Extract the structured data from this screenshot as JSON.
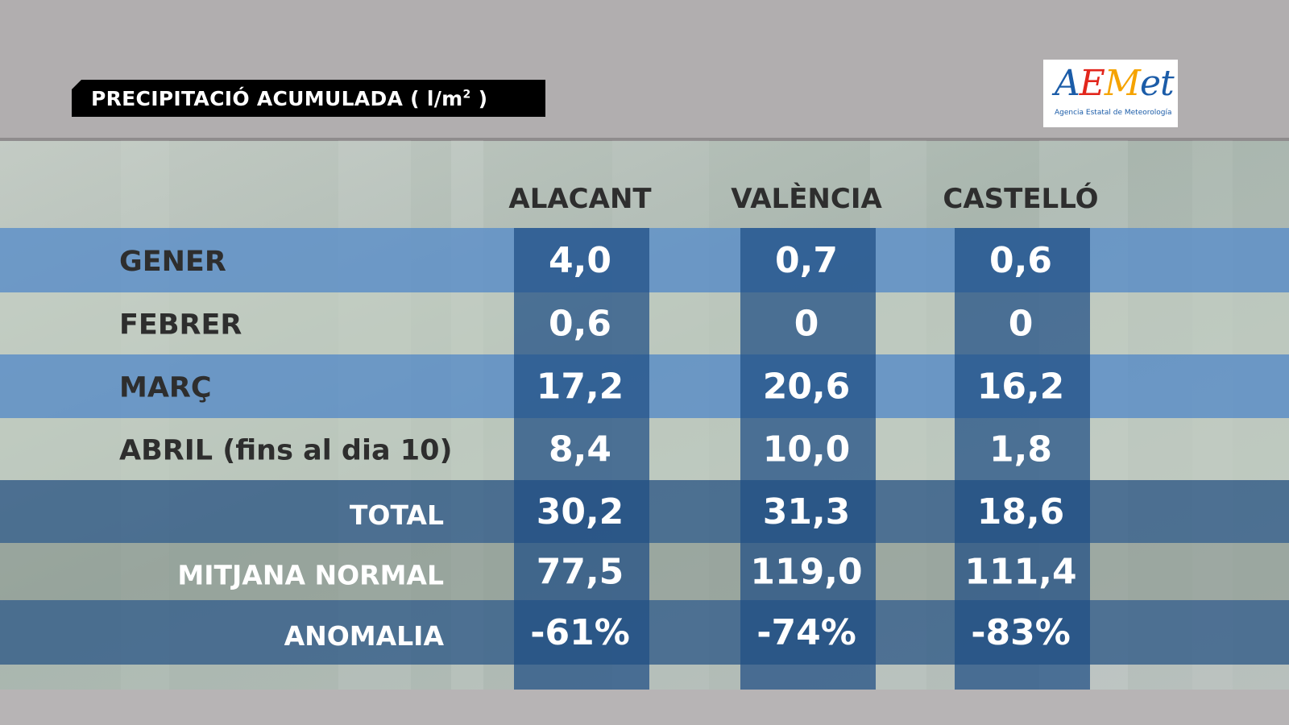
{
  "header": {
    "title_text": "PRECIPITACIÓ ACUMULADA ( l/m",
    "title_sup": "2",
    "title_close": " )"
  },
  "logo": {
    "word_a": "A",
    "word_e": "E",
    "word_m": "M",
    "word_t": "et",
    "subtitle": "Agencia Estatal de Meteorología"
  },
  "colors": {
    "frame_grey": "#b1aeaf",
    "band_blue": "#5b8fc8",
    "band_pale": "#c9d3c6",
    "band_dark": "#2f5a86",
    "column_blue": "#1f4d84",
    "label_dark": "#2e2e2e",
    "value_white": "#ffffff"
  },
  "chart_data": {
    "type": "table",
    "title": "PRECIPITACIÓ ACUMULADA ( l/m² )",
    "columns": [
      "ALACANT",
      "VALÈNCIA",
      "CASTELLÓ"
    ],
    "rows": [
      {
        "label": "GENER",
        "values": [
          "4,0",
          "0,7",
          "0,6"
        ]
      },
      {
        "label": "FEBRER",
        "values": [
          "0,6",
          "0",
          "0"
        ]
      },
      {
        "label": "MARÇ",
        "values": [
          "17,2",
          "20,6",
          "16,2"
        ]
      },
      {
        "label": "ABRIL (fins al dia 10)",
        "values": [
          "8,4",
          "10,0",
          "1,8"
        ]
      }
    ],
    "summary_rows": [
      {
        "label": "TOTAL",
        "values": [
          "30,2",
          "31,3",
          "18,6"
        ]
      },
      {
        "label": "MITJANA NORMAL",
        "values": [
          "77,5",
          "119,0",
          "111,4"
        ]
      },
      {
        "label": "ANOMALIA",
        "values": [
          "-61%",
          "-74%",
          "-83%"
        ]
      }
    ]
  }
}
